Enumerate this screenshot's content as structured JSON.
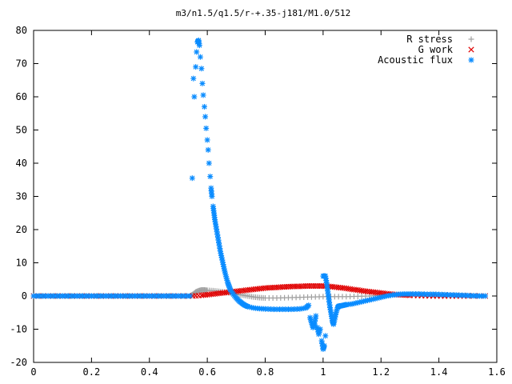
{
  "chart_data": {
    "type": "scatter",
    "title": "m3/n1.5/q1.5/r-+.35-j181/M1.0/512",
    "xlabel": "",
    "ylabel": "",
    "xlim": [
      0,
      1.6
    ],
    "ylim": [
      -20,
      80
    ],
    "x_ticks": [
      "0",
      "0.2",
      "0.4",
      "0.6",
      "0.8",
      "1",
      "1.2",
      "1.4",
      "1.6"
    ],
    "y_ticks": [
      "-20",
      "-10",
      "0",
      "10",
      "20",
      "30",
      "40",
      "50",
      "60",
      "70",
      "80"
    ],
    "grid": false,
    "legend_position": "top-right",
    "series": [
      {
        "name": "R stress",
        "marker": "plus",
        "color": "#a0a0a0",
        "points": [
          [
            0.0,
            0
          ],
          [
            0.05,
            0
          ],
          [
            0.1,
            0
          ],
          [
            0.15,
            0
          ],
          [
            0.2,
            0
          ],
          [
            0.25,
            0
          ],
          [
            0.3,
            0
          ],
          [
            0.35,
            0
          ],
          [
            0.4,
            0
          ],
          [
            0.45,
            0
          ],
          [
            0.5,
            0
          ],
          [
            0.54,
            0
          ],
          [
            0.55,
            0.5
          ],
          [
            0.56,
            1.2
          ],
          [
            0.57,
            1.6
          ],
          [
            0.58,
            1.8
          ],
          [
            0.59,
            1.8
          ],
          [
            0.6,
            1.7
          ],
          [
            0.62,
            1.6
          ],
          [
            0.64,
            1.4
          ],
          [
            0.66,
            1.2
          ],
          [
            0.68,
            0.9
          ],
          [
            0.7,
            0.6
          ],
          [
            0.72,
            0.3
          ],
          [
            0.74,
            0.0
          ],
          [
            0.76,
            -0.3
          ],
          [
            0.78,
            -0.5
          ],
          [
            0.8,
            -0.6
          ],
          [
            0.84,
            -0.6
          ],
          [
            0.88,
            -0.5
          ],
          [
            0.92,
            -0.4
          ],
          [
            0.96,
            -0.3
          ],
          [
            1.0,
            -0.2
          ],
          [
            1.04,
            -0.2
          ],
          [
            1.08,
            -0.2
          ],
          [
            1.12,
            -0.1
          ],
          [
            1.16,
            0.0
          ],
          [
            1.2,
            0.2
          ],
          [
            1.24,
            0.4
          ],
          [
            1.28,
            0.5
          ],
          [
            1.32,
            0.5
          ],
          [
            1.36,
            0.5
          ],
          [
            1.4,
            0.4
          ],
          [
            1.44,
            0.3
          ],
          [
            1.48,
            0.2
          ],
          [
            1.52,
            0.1
          ],
          [
            1.56,
            0.0
          ]
        ]
      },
      {
        "name": "G work",
        "marker": "cross",
        "color": "#e00000",
        "points": [
          [
            0.0,
            0
          ],
          [
            0.05,
            0
          ],
          [
            0.1,
            0
          ],
          [
            0.15,
            0
          ],
          [
            0.2,
            0
          ],
          [
            0.25,
            0
          ],
          [
            0.3,
            0
          ],
          [
            0.35,
            0
          ],
          [
            0.4,
            0
          ],
          [
            0.45,
            0
          ],
          [
            0.5,
            0
          ],
          [
            0.55,
            0
          ],
          [
            0.58,
            0.2
          ],
          [
            0.6,
            0.4
          ],
          [
            0.62,
            0.6
          ],
          [
            0.64,
            0.8
          ],
          [
            0.66,
            1.0
          ],
          [
            0.68,
            1.2
          ],
          [
            0.7,
            1.4
          ],
          [
            0.72,
            1.6
          ],
          [
            0.74,
            1.8
          ],
          [
            0.76,
            2.0
          ],
          [
            0.78,
            2.2
          ],
          [
            0.8,
            2.4
          ],
          [
            0.82,
            2.5
          ],
          [
            0.84,
            2.6
          ],
          [
            0.86,
            2.7
          ],
          [
            0.88,
            2.8
          ],
          [
            0.9,
            2.9
          ],
          [
            0.92,
            2.9
          ],
          [
            0.94,
            3.0
          ],
          [
            0.96,
            3.0
          ],
          [
            0.98,
            3.0
          ],
          [
            1.0,
            3.0
          ],
          [
            1.02,
            2.9
          ],
          [
            1.04,
            2.7
          ],
          [
            1.06,
            2.5
          ],
          [
            1.08,
            2.3
          ],
          [
            1.1,
            2.0
          ],
          [
            1.12,
            1.8
          ],
          [
            1.14,
            1.5
          ],
          [
            1.16,
            1.3
          ],
          [
            1.18,
            1.1
          ],
          [
            1.2,
            0.9
          ],
          [
            1.22,
            0.7
          ],
          [
            1.24,
            0.5
          ],
          [
            1.26,
            0.4
          ],
          [
            1.28,
            0.3
          ],
          [
            1.3,
            0.2
          ],
          [
            1.34,
            0.1
          ],
          [
            1.38,
            0.0
          ],
          [
            1.42,
            0.0
          ],
          [
            1.46,
            0.0
          ],
          [
            1.5,
            0.0
          ],
          [
            1.56,
            0.0
          ]
        ]
      },
      {
        "name": "Acoustic flux",
        "marker": "star",
        "color": "#0a8cff",
        "points": [
          [
            0.0,
            0
          ],
          [
            0.03,
            0
          ],
          [
            0.06,
            0
          ],
          [
            0.09,
            0
          ],
          [
            0.12,
            0
          ],
          [
            0.15,
            0
          ],
          [
            0.18,
            0
          ],
          [
            0.21,
            0
          ],
          [
            0.24,
            0
          ],
          [
            0.27,
            0
          ],
          [
            0.3,
            0
          ],
          [
            0.33,
            0
          ],
          [
            0.36,
            0
          ],
          [
            0.39,
            0
          ],
          [
            0.42,
            0
          ],
          [
            0.45,
            0
          ],
          [
            0.48,
            0
          ],
          [
            0.51,
            0
          ],
          [
            0.54,
            0
          ],
          [
            0.548,
            35.5
          ],
          [
            0.552,
            65.5
          ],
          [
            0.555,
            60.0
          ],
          [
            0.56,
            69.0
          ],
          [
            0.563,
            73.5
          ],
          [
            0.566,
            76.5
          ],
          [
            0.57,
            77.0
          ],
          [
            0.573,
            75.5
          ],
          [
            0.576,
            72.0
          ],
          [
            0.58,
            68.5
          ],
          [
            0.583,
            64.0
          ],
          [
            0.586,
            60.5
          ],
          [
            0.59,
            57.0
          ],
          [
            0.593,
            54.0
          ],
          [
            0.596,
            50.5
          ],
          [
            0.6,
            47.0
          ],
          [
            0.603,
            44.0
          ],
          [
            0.606,
            40.0
          ],
          [
            0.61,
            36.0
          ],
          [
            0.613,
            32.5
          ],
          [
            0.616,
            30.0
          ],
          [
            0.62,
            27.0
          ],
          [
            0.623,
            25.0
          ],
          [
            0.626,
            23.0
          ],
          [
            0.63,
            21.0
          ],
          [
            0.635,
            18.5
          ],
          [
            0.64,
            16.0
          ],
          [
            0.645,
            13.5
          ],
          [
            0.65,
            11.5
          ],
          [
            0.655,
            9.5
          ],
          [
            0.66,
            7.5
          ],
          [
            0.665,
            5.8
          ],
          [
            0.67,
            4.2
          ],
          [
            0.675,
            3.0
          ],
          [
            0.68,
            1.8
          ],
          [
            0.69,
            0.5
          ],
          [
            0.7,
            -0.6
          ],
          [
            0.71,
            -1.5
          ],
          [
            0.72,
            -2.2
          ],
          [
            0.73,
            -2.8
          ],
          [
            0.74,
            -3.2
          ],
          [
            0.76,
            -3.6
          ],
          [
            0.78,
            -3.8
          ],
          [
            0.8,
            -3.9
          ],
          [
            0.83,
            -4.0
          ],
          [
            0.86,
            -4.0
          ],
          [
            0.89,
            -4.0
          ],
          [
            0.92,
            -3.9
          ],
          [
            0.94,
            -3.6
          ],
          [
            0.95,
            -2.8
          ],
          [
            0.955,
            -6.5
          ],
          [
            0.96,
            -8.0
          ],
          [
            0.965,
            -9.5
          ],
          [
            0.97,
            -8.5
          ],
          [
            0.975,
            -6.0
          ],
          [
            0.98,
            -9.5
          ],
          [
            0.985,
            -11.5
          ],
          [
            0.99,
            -10.0
          ],
          [
            0.995,
            -13.5
          ],
          [
            1.0,
            -16.0
          ],
          [
            1.004,
            -15.0
          ],
          [
            1.008,
            -12.0
          ],
          [
            1.0,
            6.0
          ],
          [
            1.008,
            6.0
          ],
          [
            1.012,
            4.0
          ],
          [
            1.016,
            1.5
          ],
          [
            1.02,
            -1.0
          ],
          [
            1.024,
            -3.5
          ],
          [
            1.028,
            -5.5
          ],
          [
            1.032,
            -7.5
          ],
          [
            1.036,
            -8.5
          ],
          [
            1.04,
            -7.0
          ],
          [
            1.045,
            -5.0
          ],
          [
            1.05,
            -3.5
          ],
          [
            1.055,
            -3.0
          ],
          [
            1.06,
            -3.0
          ],
          [
            1.07,
            -2.8
          ],
          [
            1.08,
            -2.6
          ],
          [
            1.1,
            -2.4
          ],
          [
            1.12,
            -2.0
          ],
          [
            1.14,
            -1.6
          ],
          [
            1.16,
            -1.2
          ],
          [
            1.18,
            -0.8
          ],
          [
            1.2,
            -0.4
          ],
          [
            1.22,
            0.0
          ],
          [
            1.24,
            0.3
          ],
          [
            1.26,
            0.5
          ],
          [
            1.28,
            0.6
          ],
          [
            1.3,
            0.6
          ],
          [
            1.33,
            0.6
          ],
          [
            1.36,
            0.5
          ],
          [
            1.39,
            0.5
          ],
          [
            1.42,
            0.4
          ],
          [
            1.45,
            0.3
          ],
          [
            1.48,
            0.2
          ],
          [
            1.51,
            0.1
          ],
          [
            1.54,
            0.0
          ],
          [
            1.56,
            0.0
          ]
        ]
      }
    ]
  }
}
